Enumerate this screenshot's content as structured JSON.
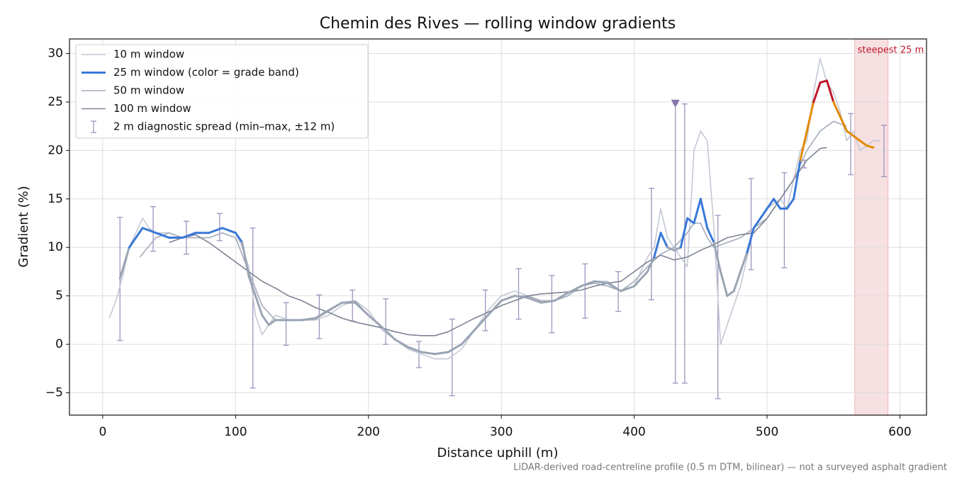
{
  "chart_data": {
    "type": "line",
    "title": "Chemin des Rives — rolling window gradients",
    "xlabel": "Distance uphill (m)",
    "ylabel": "Gradient (%)",
    "footnote": "LiDAR-derived road-centreline profile (0.5 m DTM, bilinear) — not a surveyed asphalt gradient",
    "xlim": [
      -25,
      620
    ],
    "ylim": [
      -7.3,
      31.5
    ],
    "xticks": [
      0,
      100,
      200,
      300,
      400,
      500,
      600
    ],
    "yticks": [
      {
        "value": -5,
        "label": "−5"
      },
      0,
      5,
      10,
      15,
      20,
      25,
      30
    ],
    "grid": true,
    "legend": "upper left",
    "series": [
      {
        "name": "10 m window",
        "color": "#c3c8d4",
        "x": [
          5,
          10,
          15,
          20,
          25,
          30,
          35,
          40,
          50,
          60,
          70,
          80,
          90,
          100,
          105,
          110,
          115,
          120,
          125,
          130,
          140,
          150,
          160,
          170,
          180,
          190,
          200,
          210,
          220,
          230,
          240,
          250,
          260,
          270,
          280,
          290,
          300,
          310,
          320,
          330,
          340,
          350,
          360,
          370,
          380,
          390,
          400,
          410,
          415,
          420,
          425,
          430,
          435,
          440,
          445,
          450,
          455,
          460,
          465,
          470,
          480,
          485,
          490,
          500,
          510,
          515,
          520,
          525,
          530,
          535,
          540,
          545,
          550,
          555,
          560,
          565,
          570,
          580,
          585
        ],
        "values": [
          2.7,
          4.5,
          7,
          10,
          11.5,
          13,
          12,
          11.5,
          11.5,
          11,
          11.5,
          11.5,
          12,
          11.5,
          10,
          8,
          3,
          1,
          2,
          3,
          2.5,
          2.5,
          2.5,
          3,
          4,
          4.5,
          3.5,
          1.5,
          0.5,
          -0.5,
          -1,
          -1.5,
          -1.5,
          -0.5,
          1.5,
          3.5,
          5,
          5.5,
          5,
          4.5,
          4.5,
          5,
          6,
          6.5,
          6.5,
          5.5,
          6,
          9,
          10,
          14,
          11,
          10,
          9,
          8,
          20,
          22,
          21,
          12,
          0,
          2,
          6,
          9,
          12,
          14,
          15,
          14,
          17,
          20,
          21,
          26,
          29.5,
          27,
          26,
          24,
          21,
          22,
          20,
          21,
          21
        ]
      },
      {
        "name": "25 m window (color = grade band)",
        "color": "#3a78d8",
        "x": [
          13,
          20,
          30,
          40,
          50,
          60,
          70,
          80,
          90,
          100,
          105,
          110,
          115,
          120,
          125,
          130,
          140,
          150,
          160,
          170,
          180,
          190,
          200,
          210,
          220,
          230,
          240,
          250,
          260,
          270,
          280,
          290,
          300,
          310,
          320,
          330,
          340,
          350,
          360,
          370,
          380,
          390,
          400,
          410,
          415,
          420,
          425,
          430,
          435,
          440,
          445,
          450,
          455,
          460,
          465,
          470,
          475,
          480,
          485,
          490,
          500,
          505,
          510,
          515,
          520,
          525,
          530,
          535,
          540,
          545,
          550,
          555,
          560,
          565,
          570,
          575,
          580
        ],
        "values": [
          6.8,
          10,
          12,
          11.5,
          11,
          11,
          11.5,
          11.5,
          12,
          11.5,
          10.5,
          7,
          5,
          3,
          2,
          2.5,
          2.5,
          2.5,
          2.7,
          3.5,
          4.3,
          4.3,
          3,
          1.8,
          0.5,
          -0.3,
          -0.8,
          -1,
          -0.8,
          0,
          1.5,
          3,
          4.5,
          5,
          4.8,
          4.3,
          4.5,
          5.3,
          6,
          6.5,
          6.3,
          5.5,
          6,
          7.5,
          9,
          11.5,
          10,
          9.7,
          10,
          13,
          12.5,
          15,
          12,
          10.5,
          7.5,
          5,
          5.5,
          7.5,
          9.5,
          12,
          14,
          15,
          14,
          14,
          15,
          19,
          22,
          25,
          27,
          27.2,
          25,
          23.5,
          22,
          21.5,
          21,
          20.5,
          20.3
        ]
      },
      {
        "name": "50 m window",
        "color": "#a3abba",
        "x": [
          28,
          40,
          50,
          60,
          70,
          80,
          90,
          100,
          110,
          120,
          130,
          140,
          150,
          160,
          170,
          180,
          190,
          200,
          210,
          220,
          230,
          240,
          250,
          260,
          270,
          280,
          290,
          300,
          310,
          320,
          330,
          340,
          350,
          360,
          370,
          380,
          390,
          400,
          410,
          420,
          430,
          440,
          445,
          450,
          455,
          460,
          470,
          480,
          490,
          500,
          510,
          520,
          530,
          540,
          550,
          560
        ],
        "values": [
          9,
          11,
          11.5,
          11,
          11,
          11,
          11.5,
          11,
          7.5,
          4,
          2.5,
          2.5,
          2.5,
          2.6,
          3.4,
          4.3,
          4.5,
          3,
          1.8,
          0.5,
          -0.3,
          -0.8,
          -1,
          -0.8,
          0,
          1.5,
          3,
          4.5,
          5,
          5,
          4.5,
          4.5,
          5,
          6,
          6.3,
          6,
          5.5,
          6.5,
          8,
          9.3,
          10,
          11.5,
          12.5,
          12.5,
          11,
          10,
          10.5,
          11,
          12,
          13,
          15,
          17,
          20,
          22,
          23,
          22.5
        ]
      },
      {
        "name": "100 m window",
        "color": "#7d8494",
        "x": [
          50,
          60,
          70,
          80,
          90,
          100,
          110,
          120,
          130,
          140,
          150,
          160,
          170,
          180,
          190,
          200,
          210,
          220,
          230,
          240,
          250,
          260,
          270,
          280,
          290,
          300,
          310,
          320,
          330,
          340,
          350,
          360,
          370,
          380,
          390,
          400,
          410,
          420,
          430,
          440,
          450,
          460,
          470,
          480,
          490,
          500,
          510,
          520,
          530,
          540,
          545
        ],
        "values": [
          10.5,
          11,
          11.3,
          10.5,
          9.5,
          8.5,
          7.5,
          6.5,
          5.8,
          5,
          4.5,
          3.8,
          3.3,
          2.7,
          2.3,
          2,
          1.7,
          1.3,
          1,
          0.9,
          0.9,
          1.3,
          2,
          2.7,
          3.3,
          4,
          4.5,
          5,
          5.2,
          5.3,
          5.4,
          5.6,
          6,
          6.3,
          6.5,
          7.5,
          8.5,
          9.2,
          8.7,
          9,
          9.7,
          10.3,
          11,
          11.3,
          11.5,
          13,
          15,
          17,
          19,
          20.2,
          20.3
        ]
      }
    ],
    "grade_bands": {
      "thresholds": [
        10,
        20,
        25
      ],
      "colors": [
        "#9aa5b4",
        "#3a78d8",
        "#e08a00",
        "#c0182a"
      ]
    },
    "errorbars": {
      "name": "2 m diagnostic spread (min–max, ±12 m)",
      "color": "#9c94bf",
      "x": [
        13,
        38,
        63,
        88,
        113,
        138,
        163,
        188,
        213,
        238,
        263,
        288,
        313,
        338,
        363,
        388,
        413,
        431,
        438,
        463,
        488,
        513,
        528,
        563,
        588
      ],
      "low": [
        0.4,
        9.6,
        9.3,
        10.7,
        -4.5,
        -0.1,
        0.6,
        2.4,
        0,
        -2.4,
        -5.3,
        1.4,
        2.6,
        1.2,
        2.7,
        3.4,
        4.6,
        -4,
        -4,
        -5.6,
        7.7,
        7.9,
        18.2,
        17.5,
        17.3
      ],
      "high": [
        13.1,
        14.2,
        12.7,
        13.5,
        12,
        4.3,
        5.1,
        5.6,
        4.7,
        0.3,
        2.6,
        5.6,
        7.8,
        7.1,
        8.3,
        7.5,
        16.1,
        24.8,
        24.8,
        13.3,
        17.1,
        17.7,
        19,
        23.8,
        22.6
      ]
    },
    "marker": {
      "x": 431,
      "y": 24.8,
      "color": "#8a74a8"
    },
    "span": {
      "start": 566,
      "end": 591,
      "color": "#e8a5ad",
      "label": "steepest 25 m",
      "label_color": "#c0182a"
    }
  }
}
